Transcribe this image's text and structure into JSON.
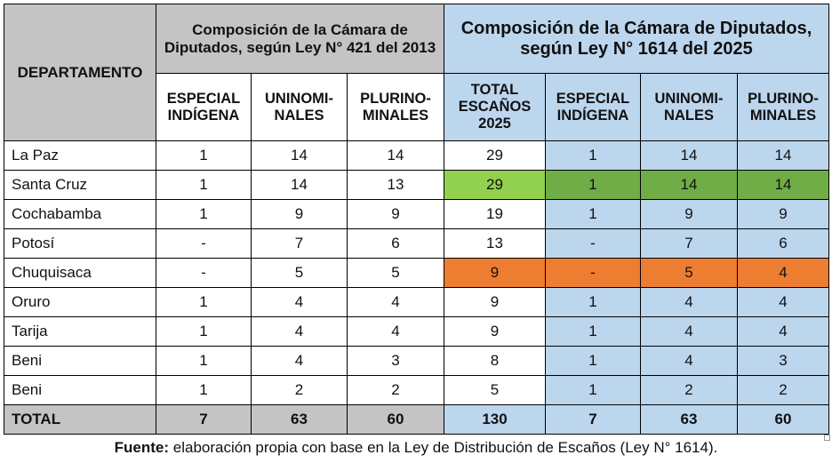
{
  "header": {
    "departamento": "DEPARTAMENTO",
    "group_2013": "Composición  de la Cámara de Diputados,  según Ley N° 421 del 2013",
    "group_2025": "Composición de la Cámara de Diputados, según Ley N° 1614 del 2025",
    "especial": "ESPECIAL INDÍGENA",
    "uninominales": "UNINOMI-NALES",
    "plurinominales": "PLURINO-MINALES",
    "total_escanos": "TOTAL ESCAÑOS 2025"
  },
  "colors": {
    "header_grey": "#c4c4c4",
    "light_blue": "#bcd6ee",
    "green": "#70ad47",
    "light_green": "#92d050",
    "orange": "#ed7d31"
  },
  "rows": [
    {
      "dep": "La Paz",
      "esp_2013": "1",
      "uni_2013": "14",
      "plu_2013": "14",
      "total_2025": "29",
      "esp_2025": "1",
      "uni_2025": "14",
      "plu_2025": "14"
    },
    {
      "dep": "Santa Cruz",
      "esp_2013": "1",
      "uni_2013": "14",
      "plu_2013": "13",
      "total_2025": "29",
      "esp_2025": "1",
      "uni_2025": "14",
      "plu_2025": "14"
    },
    {
      "dep": "Cochabamba",
      "esp_2013": "1",
      "uni_2013": "9",
      "plu_2013": "9",
      "total_2025": "19",
      "esp_2025": "1",
      "uni_2025": "9",
      "plu_2025": "9"
    },
    {
      "dep": "Potosí",
      "esp_2013": "-",
      "uni_2013": "7",
      "plu_2013": "6",
      "total_2025": "13",
      "esp_2025": "-",
      "uni_2025": "7",
      "plu_2025": "6"
    },
    {
      "dep": "Chuquisaca",
      "esp_2013": "-",
      "uni_2013": "5",
      "plu_2013": "5",
      "total_2025": "9",
      "esp_2025": "-",
      "uni_2025": "5",
      "plu_2025": "4"
    },
    {
      "dep": "Oruro",
      "esp_2013": "1",
      "uni_2013": "4",
      "plu_2013": "4",
      "total_2025": "9",
      "esp_2025": "1",
      "uni_2025": "4",
      "plu_2025": "4"
    },
    {
      "dep": "Tarija",
      "esp_2013": "1",
      "uni_2013": "4",
      "plu_2013": "4",
      "total_2025": "9",
      "esp_2025": "1",
      "uni_2025": "4",
      "plu_2025": "4"
    },
    {
      "dep": "Beni",
      "esp_2013": "1",
      "uni_2013": "4",
      "plu_2013": "3",
      "total_2025": "8",
      "esp_2025": "1",
      "uni_2025": "4",
      "plu_2025": "3"
    },
    {
      "dep": "Beni",
      "esp_2013": "1",
      "uni_2013": "2",
      "plu_2013": "2",
      "total_2025": "5",
      "esp_2025": "1",
      "uni_2025": "2",
      "plu_2025": "2"
    }
  ],
  "total": {
    "label": "TOTAL",
    "esp_2013": "7",
    "uni_2013": "63",
    "plu_2013": "60",
    "total_2025": "130",
    "esp_2025": "7",
    "uni_2025": "63",
    "plu_2025": "60"
  },
  "footnote": {
    "label": "Fuente:",
    "text": " elaboración  propia con base en la Ley de Distribución de Escaños (Ley N° 1614)."
  }
}
